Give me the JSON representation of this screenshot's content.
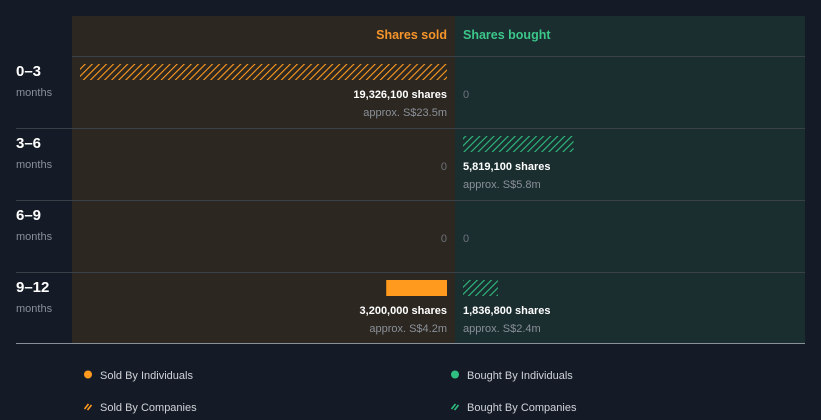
{
  "chart_data": {
    "type": "bar",
    "orientation": "horizontal",
    "columns": {
      "sold": "Shares sold",
      "bought": "Shares bought"
    },
    "categories": [
      {
        "top": "0–3",
        "bottom": "months"
      },
      {
        "top": "3–6",
        "bottom": "months"
      },
      {
        "top": "6–9",
        "bottom": "months"
      },
      {
        "top": "9–12",
        "bottom": "months"
      }
    ],
    "sold": [
      {
        "value": 19326100,
        "shares_label": "19,326,100 shares",
        "approx_label": "approx. S$23.5m",
        "individuals": 0,
        "companies": 19326100
      },
      {
        "value": 0,
        "zero_label": "0",
        "individuals": 0,
        "companies": 0
      },
      {
        "value": 0,
        "zero_label": "0",
        "individuals": 0,
        "companies": 0
      },
      {
        "value": 3200000,
        "shares_label": "3,200,000 shares",
        "approx_label": "approx. S$4.2m",
        "individuals": 3200000,
        "companies": 0
      }
    ],
    "bought": [
      {
        "value": 0,
        "zero_label": "0",
        "individuals": 0,
        "companies": 0
      },
      {
        "value": 5819100,
        "shares_label": "5,819,100 shares",
        "approx_label": "approx. S$5.8m",
        "individuals": 0,
        "companies": 5819100
      },
      {
        "value": 0,
        "zero_label": "0",
        "individuals": 0,
        "companies": 0
      },
      {
        "value": 1836800,
        "shares_label": "1,836,800 shares",
        "approx_label": "approx. S$2.4m",
        "individuals": 0,
        "companies": 1836800
      }
    ],
    "xlim": [
      0,
      19326100
    ],
    "legend": {
      "placement": "bottom",
      "items": [
        {
          "label": "Sold By Individuals",
          "kind": "solid",
          "side": "sold"
        },
        {
          "label": "Bought By Individuals",
          "kind": "solid",
          "side": "bought"
        },
        {
          "label": "Sold By Companies",
          "kind": "hatched",
          "side": "sold"
        },
        {
          "label": "Bought By Companies",
          "kind": "hatched",
          "side": "bought"
        }
      ]
    },
    "colors": {
      "background": "#151b26",
      "sold_panel": "#2c2721",
      "bought_panel": "#1a2d2f",
      "sold": "#ff9a1f",
      "bought": "#2fbf80",
      "sold_header": "#f5952a",
      "bought_header": "#3cc68a",
      "text": "#ffffff",
      "muted": "#8a9099",
      "separator": "#3a4048"
    }
  }
}
